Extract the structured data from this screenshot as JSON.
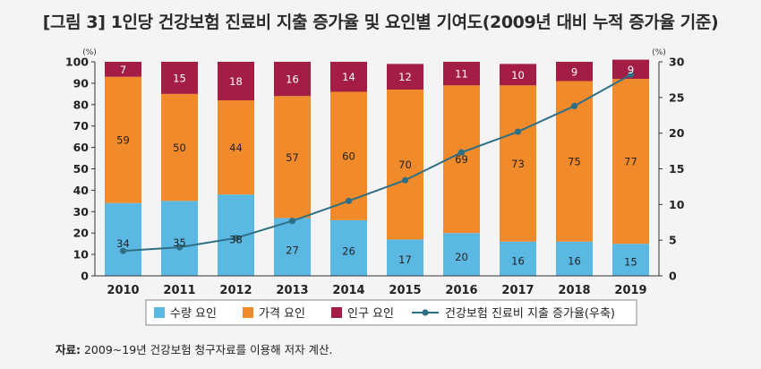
{
  "title": "[그림 3] 1인당 건강보험 진료비 지출 증가율 및 요인별 기여도(2009년 대비 누적 증가율 기준)",
  "source": {
    "label": "자료:",
    "text": "2009~19년 건강보험 청구자료를 이용해 저자 계산."
  },
  "chart_data": {
    "type": "bar",
    "stacked": true,
    "categories": [
      "2010",
      "2011",
      "2012",
      "2013",
      "2014",
      "2015",
      "2016",
      "2017",
      "2018",
      "2019"
    ],
    "series": [
      {
        "name": "수량 요인",
        "color": "#5bb8e3",
        "axis": "left",
        "values": [
          34,
          35,
          38,
          27,
          26,
          17,
          20,
          16,
          16,
          15
        ]
      },
      {
        "name": "가격 요인",
        "color": "#f08a2a",
        "axis": "left",
        "values": [
          59,
          50,
          44,
          57,
          60,
          70,
          69,
          73,
          75,
          77
        ]
      },
      {
        "name": "인구 요인",
        "color": "#a31d44",
        "axis": "left",
        "values": [
          7,
          15,
          18,
          16,
          14,
          12,
          11,
          10,
          9,
          9
        ]
      },
      {
        "name": "건강보험 진료비 지출 증가율(우축)",
        "type": "line",
        "color": "#2e6f86",
        "axis": "right",
        "values": [
          3.5,
          4.0,
          5.3,
          7.7,
          10.5,
          13.4,
          17.3,
          20.2,
          23.8,
          28.2
        ]
      }
    ],
    "y_left": {
      "unit": "(%)",
      "min": 0,
      "max": 100,
      "ticks": [
        0,
        10,
        20,
        30,
        40,
        50,
        60,
        70,
        80,
        90,
        100
      ]
    },
    "y_right": {
      "unit": "(%)",
      "min": 0,
      "max": 30,
      "ticks": [
        0,
        5,
        10,
        15,
        20,
        25,
        30
      ]
    },
    "legend_position": "bottom-center",
    "grid": false
  }
}
